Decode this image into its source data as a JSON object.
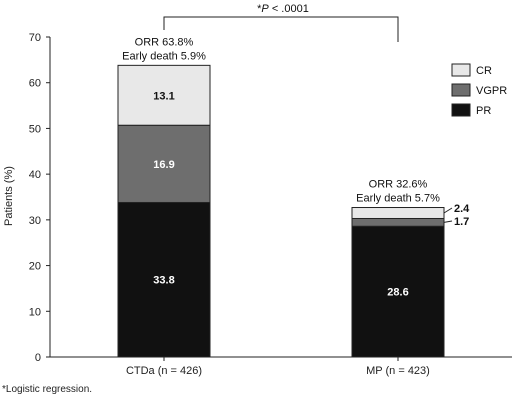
{
  "chart_data": {
    "type": "bar",
    "stacked": true,
    "categories": [
      "CTDa (n = 426)",
      "MP (n = 423)"
    ],
    "series": [
      {
        "name": "PR",
        "values": [
          33.8,
          28.6
        ],
        "color": "#111111",
        "label_color": "#ffffff"
      },
      {
        "name": "VGPR",
        "values": [
          16.9,
          1.7
        ],
        "color": "#6e6e6e",
        "label_color": "#ffffff"
      },
      {
        "name": "CR",
        "values": [
          13.1,
          2.4
        ],
        "color": "#e8e8e8",
        "label_color": "#111111"
      }
    ],
    "bar_annotations": [
      [
        "ORR 63.8%",
        "Early death 5.9%"
      ],
      [
        "ORR 32.6%",
        "Early death 5.7%"
      ]
    ],
    "significance": {
      "prefix": "*",
      "italic": "P",
      "suffix": " < .0001"
    },
    "ylabel": "Patients (%)",
    "ylim": [
      0,
      70
    ],
    "yticks": [
      0,
      10,
      20,
      30,
      40,
      50,
      60,
      70
    ],
    "legend_order": [
      "CR",
      "VGPR",
      "PR"
    ],
    "legend_position": "top-right",
    "grid": false
  },
  "footnote": "*Logistic regression."
}
